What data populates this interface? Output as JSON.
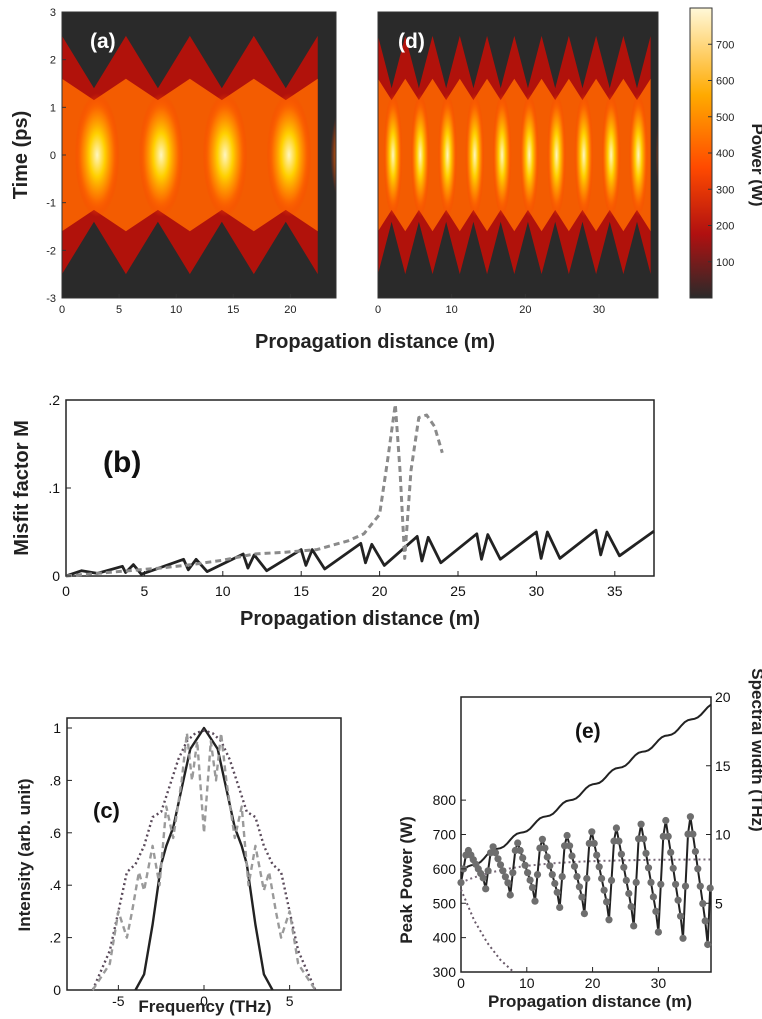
{
  "chart_data": [
    {
      "id": "a",
      "type": "heatmap",
      "panel_label": "(a)",
      "xlabel": "",
      "ylabel": "Time (ps)",
      "xlim": [
        0,
        24
      ],
      "ylim": [
        -3,
        3
      ],
      "xticks": [
        "0",
        "5",
        "10",
        "15",
        "20"
      ],
      "yticks": [
        "3",
        "2",
        "1",
        "0",
        "-1",
        "-2",
        "-3"
      ],
      "breathing_period_m": 5.6,
      "peak_positions_m": [
        3,
        8.6,
        14.2,
        20
      ],
      "pulse_half_width_ps": [
        1.0,
        2.5
      ]
    },
    {
      "id": "d",
      "type": "heatmap",
      "panel_label": "(d)",
      "xlabel": "",
      "ylabel": "",
      "xlim": [
        0,
        38
      ],
      "ylim": [
        -3,
        3
      ],
      "xticks": [
        "0",
        "10",
        "20",
        "30"
      ],
      "breathing_period_m": 3.7,
      "pulse_half_width_ps": [
        1.0,
        2.5
      ]
    },
    {
      "id": "colorbar",
      "type": "heatmap",
      "label": "Power (W)",
      "range": [
        0,
        800
      ],
      "ticks": [
        "700",
        "600",
        "500",
        "400",
        "300",
        "200",
        "100"
      ],
      "colors": [
        "#2a2a2a",
        "#c81010",
        "#ff5a00",
        "#ffb000",
        "#fff0b0"
      ]
    },
    {
      "id": "b",
      "type": "line",
      "panel_label": "(b)",
      "xlabel": "Propagation distance (m)",
      "ylabel": "Misfit factor M",
      "xlim": [
        0,
        37.5
      ],
      "ylim": [
        0,
        0.2
      ],
      "xticks": [
        "0",
        "5",
        "10",
        "15",
        "20",
        "25",
        "30",
        "35"
      ],
      "yticks": [
        ".2",
        ".1",
        "0"
      ],
      "series": [
        {
          "style": "solid",
          "color": "#222222",
          "x": [
            0,
            1,
            2,
            3.6,
            3.8,
            4.3,
            4.8,
            5.3,
            7.5,
            7.8,
            8.3,
            9.0,
            11.3,
            11.6,
            12.0,
            12.8,
            15.0,
            15.3,
            15.7,
            16.5,
            18.8,
            19.1,
            19.5,
            20.3,
            22.4,
            22.7,
            23.1,
            23.9,
            26.2,
            26.5,
            26.9,
            27.7,
            30.0,
            30.3,
            30.7,
            31.5,
            33.8,
            34.1,
            34.5,
            35.3,
            37.5
          ],
          "y": [
            0,
            0.006,
            0.003,
            0.011,
            0.004,
            0.013,
            0.002,
            0.005,
            0.019,
            0.007,
            0.019,
            0.005,
            0.025,
            0.009,
            0.024,
            0.006,
            0.03,
            0.012,
            0.03,
            0.008,
            0.037,
            0.015,
            0.036,
            0.012,
            0.045,
            0.017,
            0.044,
            0.015,
            0.048,
            0.019,
            0.047,
            0.019,
            0.05,
            0.02,
            0.05,
            0.02,
            0.052,
            0.024,
            0.05,
            0.023,
            0.051
          ]
        },
        {
          "style": "dashed",
          "color": "#8a8a8a",
          "x": [
            0,
            2,
            4,
            6,
            8,
            10,
            12,
            14,
            16,
            18,
            19,
            20,
            20.5,
            21,
            21.3,
            21.6,
            22,
            22.5,
            23,
            23.5,
            24
          ],
          "y": [
            0,
            0.003,
            0.006,
            0.009,
            0.013,
            0.018,
            0.025,
            0.027,
            0.03,
            0.04,
            0.048,
            0.07,
            0.13,
            0.195,
            0.12,
            0.02,
            0.12,
            0.18,
            0.183,
            0.17,
            0.14
          ]
        }
      ]
    },
    {
      "id": "c",
      "type": "line",
      "panel_label": "(c)",
      "xlabel": "Frequency  (THz)",
      "ylabel": "Intensity (arb. unit)",
      "xlim": [
        -8,
        8
      ],
      "ylim": [
        0,
        1
      ],
      "xticks": [
        "-5",
        "0",
        "5"
      ],
      "yticks": [
        "1",
        ".8",
        ".6",
        ".4",
        ".2",
        "0"
      ],
      "series": [
        {
          "style": "solid",
          "color": "#222222",
          "x": [
            -4,
            -3.5,
            -3,
            -2.5,
            -2.2,
            -1.8,
            -1.2,
            -0.8,
            -0.3,
            0,
            0.3,
            0.8,
            1.2,
            1.8,
            2.2,
            2.5,
            3,
            3.5,
            4
          ],
          "y": [
            0,
            0.06,
            0.25,
            0.48,
            0.55,
            0.62,
            0.8,
            0.92,
            0.97,
            1.0,
            0.97,
            0.92,
            0.8,
            0.62,
            0.55,
            0.48,
            0.25,
            0.06,
            0
          ]
        },
        {
          "style": "dotted",
          "color": "#5a4a5a",
          "x": [
            -6.5,
            -5.5,
            -5,
            -4.5,
            -4,
            -3.5,
            -3,
            -2.5,
            -2,
            -1.5,
            -1,
            -0.5,
            0,
            0.5,
            1,
            1.5,
            2,
            2.5,
            3,
            3.5,
            4,
            4.5,
            5,
            5.5,
            6.5
          ],
          "y": [
            0,
            0.15,
            0.3,
            0.45,
            0.48,
            0.55,
            0.66,
            0.68,
            0.78,
            0.88,
            0.95,
            0.98,
            0.99,
            0.98,
            0.95,
            0.88,
            0.78,
            0.68,
            0.66,
            0.55,
            0.48,
            0.45,
            0.3,
            0.15,
            0
          ]
        },
        {
          "style": "dashed",
          "color": "#9a9a9a",
          "x": [
            -6.5,
            -5.5,
            -5,
            -4.5,
            -4.2,
            -3.8,
            -3.5,
            -3,
            -2.6,
            -2.2,
            -1.8,
            -1.3,
            -1,
            -0.7,
            -0.4,
            0,
            0.4,
            0.7,
            1,
            1.3,
            1.8,
            2.2,
            2.6,
            3,
            3.5,
            3.8,
            4.2,
            4.5,
            5,
            5.5,
            6.5
          ],
          "y": [
            0,
            0.1,
            0.3,
            0.2,
            0.3,
            0.45,
            0.38,
            0.55,
            0.4,
            0.7,
            0.58,
            0.8,
            0.98,
            0.8,
            0.95,
            0.6,
            0.95,
            0.8,
            0.98,
            0.8,
            0.58,
            0.7,
            0.4,
            0.55,
            0.38,
            0.45,
            0.3,
            0.2,
            0.3,
            0.1,
            0
          ]
        }
      ]
    },
    {
      "id": "e",
      "type": "line",
      "panel_label": "(e)",
      "xlabel": "Propagation distance (m)",
      "ylabel": "Peak Power (W)",
      "ylabel_right": "Spectral width (THz)",
      "xlim": [
        0,
        38
      ],
      "ylim": [
        300,
        1100
      ],
      "ylim_right": [
        0,
        20
      ],
      "xticks": [
        "0",
        "10",
        "20",
        "30"
      ],
      "yticks": [
        "800",
        "700",
        "600",
        "500",
        "400",
        "300"
      ],
      "yticks_right": [
        "20",
        "15",
        "10",
        "5"
      ],
      "breathing_period_m": 3.75,
      "peak_power_min_W": [
        560,
        380
      ],
      "peak_power_max_W": [
        660,
        790
      ],
      "spectral_width_solid_THz": [
        7.2,
        19.3
      ],
      "spectral_width_dotted_THz": [
        6.5,
        8.2
      ],
      "decay_dotted": {
        "x": [
          0,
          2,
          4,
          6,
          8
        ],
        "y": [
          540,
          450,
          385,
          335,
          300
        ]
      }
    }
  ]
}
